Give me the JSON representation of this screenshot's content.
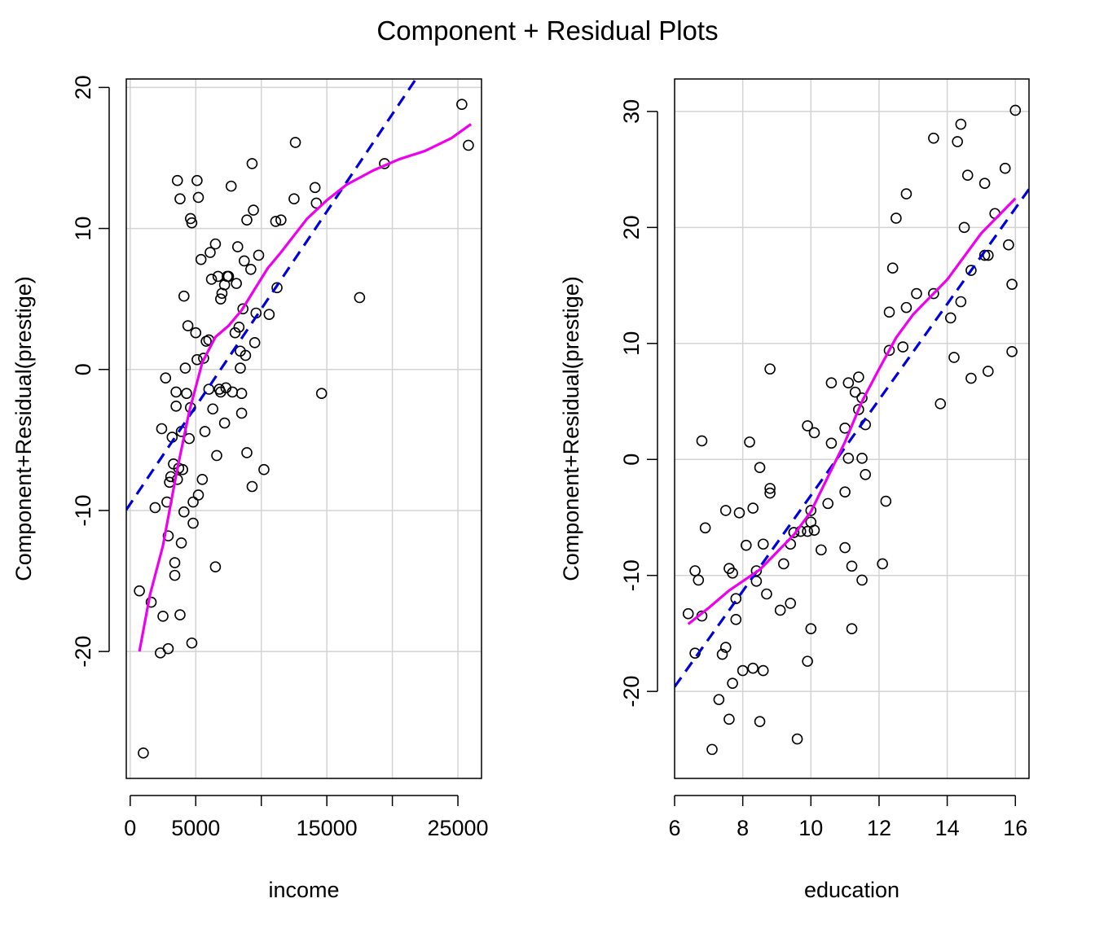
{
  "figure_title": "Component + Residual Plots",
  "chart_data": [
    {
      "type": "scatter",
      "title": "",
      "xlabel": "income",
      "ylabel": "Component+Residual(prestige)",
      "xlim": [
        -300,
        26800
      ],
      "ylim": [
        -29,
        20.6
      ],
      "xticks": [
        0,
        5000,
        15000,
        25000
      ],
      "xgrid": [
        0,
        5000,
        10000,
        15000,
        20000,
        25000
      ],
      "yticks": [
        -20,
        -10,
        0,
        10,
        20
      ],
      "grid": true,
      "colors": {
        "points": "#000000",
        "linear_fit": "#0000dd",
        "smooth": "#ee00ee",
        "grid": "#d3d3d3"
      },
      "points": [
        [
          700,
          -15.7
        ],
        [
          1000,
          -27.2
        ],
        [
          1600,
          -16.5
        ],
        [
          1900,
          -9.8
        ],
        [
          2300,
          -20.1
        ],
        [
          2400,
          -4.2
        ],
        [
          2500,
          -17.5
        ],
        [
          2700,
          -0.6
        ],
        [
          2800,
          -9.4
        ],
        [
          2900,
          -11.8
        ],
        [
          2900,
          -19.8
        ],
        [
          3000,
          -8
        ],
        [
          3100,
          -7.6
        ],
        [
          3200,
          -4.8
        ],
        [
          3300,
          -6.7
        ],
        [
          3400,
          -14.6
        ],
        [
          3400,
          -13.7
        ],
        [
          3500,
          -1.6
        ],
        [
          3500,
          -2.6
        ],
        [
          3600,
          13.4
        ],
        [
          3600,
          -7.8
        ],
        [
          3700,
          -7
        ],
        [
          3800,
          12.1
        ],
        [
          3800,
          -17.4
        ],
        [
          3900,
          -12.3
        ],
        [
          3900,
          -4.4
        ],
        [
          4000,
          -7.1
        ],
        [
          4100,
          5.2
        ],
        [
          4100,
          -10.1
        ],
        [
          4200,
          0.1
        ],
        [
          4300,
          -1.7
        ],
        [
          4400,
          3.1
        ],
        [
          4500,
          -4.9
        ],
        [
          4600,
          10.7
        ],
        [
          4600,
          -2.7
        ],
        [
          4700,
          10.4
        ],
        [
          4700,
          -19.4
        ],
        [
          4800,
          -9.4
        ],
        [
          4800,
          -10.9
        ],
        [
          5000,
          2.6
        ],
        [
          5100,
          13.4
        ],
        [
          5100,
          0.7
        ],
        [
          5200,
          12.2
        ],
        [
          5200,
          -8.9
        ],
        [
          5400,
          7.8
        ],
        [
          5500,
          -7.8
        ],
        [
          5600,
          0.8
        ],
        [
          5700,
          -4.4
        ],
        [
          5800,
          2
        ],
        [
          6000,
          2.1
        ],
        [
          6000,
          -1.4
        ],
        [
          6100,
          8.3
        ],
        [
          6200,
          6.4
        ],
        [
          6300,
          -2.8
        ],
        [
          6500,
          8.9
        ],
        [
          6500,
          -14
        ],
        [
          6600,
          -6.1
        ],
        [
          6700,
          6.6
        ],
        [
          6800,
          -1.4
        ],
        [
          6900,
          5
        ],
        [
          6900,
          -1.6
        ],
        [
          7000,
          5.4
        ],
        [
          7200,
          6
        ],
        [
          7200,
          -3.8
        ],
        [
          7300,
          -1.3
        ],
        [
          7400,
          6.6
        ],
        [
          7500,
          6.6
        ],
        [
          7700,
          13
        ],
        [
          7800,
          -1.6
        ],
        [
          8000,
          2.6
        ],
        [
          8100,
          6.1
        ],
        [
          8200,
          8.7
        ],
        [
          8300,
          3
        ],
        [
          8400,
          1.3
        ],
        [
          8400,
          0.1
        ],
        [
          8500,
          -1.7
        ],
        [
          8500,
          -3.1
        ],
        [
          8600,
          4.3
        ],
        [
          8700,
          7.7
        ],
        [
          8800,
          1
        ],
        [
          8900,
          10.6
        ],
        [
          8900,
          -5.9
        ],
        [
          9200,
          7.1
        ],
        [
          9300,
          14.6
        ],
        [
          9300,
          -8.3
        ],
        [
          9400,
          11.3
        ],
        [
          9500,
          1.9
        ],
        [
          9600,
          4
        ],
        [
          9800,
          8.1
        ],
        [
          10200,
          -7.1
        ],
        [
          10600,
          3.9
        ],
        [
          11100,
          10.5
        ],
        [
          11200,
          5.8
        ],
        [
          11500,
          10.6
        ],
        [
          12500,
          12.1
        ],
        [
          12600,
          16.1
        ],
        [
          14100,
          12.9
        ],
        [
          14200,
          11.8
        ],
        [
          14600,
          -1.7
        ],
        [
          17500,
          5.1
        ],
        [
          19400,
          14.6
        ],
        [
          25300,
          18.8
        ],
        [
          25800,
          15.9
        ]
      ],
      "linear_fit": {
        "x": [
          -300,
          21800
        ],
        "y": [
          -9.95,
          20.6
        ]
      },
      "smooth": {
        "x": [
          700,
          1500,
          2500,
          3500,
          4500,
          5500,
          6500,
          7500,
          8500,
          9500,
          10500,
          11500,
          12500,
          13500,
          15000,
          16500,
          18500,
          20500,
          22500,
          24500,
          26000
        ],
        "y": [
          -20,
          -16,
          -12.5,
          -7.5,
          -3,
          0.5,
          2.3,
          3.1,
          4.2,
          5.7,
          7.2,
          8.3,
          9.5,
          10.7,
          12,
          13.1,
          14.1,
          14.9,
          15.5,
          16.4,
          17.4
        ]
      }
    },
    {
      "type": "scatter",
      "title": "",
      "xlabel": "education",
      "ylabel": "Component+Residual(prestige)",
      "xlim": [
        6,
        16.4
      ],
      "ylim": [
        -27.5,
        32.8
      ],
      "xticks": [
        6,
        8,
        10,
        12,
        14,
        16
      ],
      "xgrid": [
        6,
        8,
        10,
        12,
        14,
        16
      ],
      "yticks": [
        -20,
        -10,
        0,
        10,
        20,
        30
      ],
      "grid": true,
      "colors": {
        "points": "#000000",
        "linear_fit": "#0000dd",
        "smooth": "#ee00ee",
        "grid": "#d3d3d3"
      },
      "points": [
        [
          6.4,
          -13.3
        ],
        [
          6.6,
          -9.6
        ],
        [
          6.6,
          -16.7
        ],
        [
          6.7,
          -10.4
        ],
        [
          6.8,
          -13.5
        ],
        [
          6.8,
          1.6
        ],
        [
          6.9,
          -5.9
        ],
        [
          7.1,
          -25
        ],
        [
          7.3,
          -20.7
        ],
        [
          7.4,
          -16.8
        ],
        [
          7.5,
          -16.2
        ],
        [
          7.5,
          -4.4
        ],
        [
          7.6,
          -22.4
        ],
        [
          7.6,
          -9.4
        ],
        [
          7.7,
          -9.8
        ],
        [
          7.7,
          -19.3
        ],
        [
          7.8,
          -12
        ],
        [
          7.8,
          -13.8
        ],
        [
          7.9,
          -4.6
        ],
        [
          8,
          -18.2
        ],
        [
          8.1,
          -7.4
        ],
        [
          8.2,
          1.5
        ],
        [
          8.3,
          -18
        ],
        [
          8.3,
          -4.2
        ],
        [
          8.4,
          -9.6
        ],
        [
          8.4,
          -10.5
        ],
        [
          8.5,
          -22.6
        ],
        [
          8.5,
          -0.7
        ],
        [
          8.6,
          -7.3
        ],
        [
          8.6,
          -18.2
        ],
        [
          8.7,
          -11.6
        ],
        [
          8.8,
          -2.5
        ],
        [
          8.8,
          -2.9
        ],
        [
          8.8,
          7.8
        ],
        [
          9.1,
          -13
        ],
        [
          9.2,
          -9
        ],
        [
          9.4,
          -7.3
        ],
        [
          9.4,
          -12.4
        ],
        [
          9.5,
          -6.3
        ],
        [
          9.5,
          -6.3
        ],
        [
          9.6,
          -24.1
        ],
        [
          9.7,
          -6.2
        ],
        [
          9.9,
          -6.2
        ],
        [
          9.9,
          -17.4
        ],
        [
          9.9,
          2.9
        ],
        [
          10,
          -5.4
        ],
        [
          10,
          -14.6
        ],
        [
          10,
          -4.4
        ],
        [
          10.1,
          -6.1
        ],
        [
          10.1,
          2.3
        ],
        [
          10.3,
          -7.8
        ],
        [
          10.5,
          -3.8
        ],
        [
          10.6,
          1.4
        ],
        [
          10.6,
          6.6
        ],
        [
          11,
          -2.8
        ],
        [
          11,
          2.7
        ],
        [
          11,
          -7.6
        ],
        [
          11.1,
          6.6
        ],
        [
          11.1,
          0.1
        ],
        [
          11.2,
          -9.2
        ],
        [
          11.2,
          -14.6
        ],
        [
          11.3,
          5.8
        ],
        [
          11.4,
          4.3
        ],
        [
          11.4,
          7.1
        ],
        [
          11.5,
          5.3
        ],
        [
          11.5,
          0.1
        ],
        [
          11.5,
          -10.4
        ],
        [
          11.6,
          3
        ],
        [
          11.6,
          -1.3
        ],
        [
          12.1,
          -9
        ],
        [
          12.2,
          -3.6
        ],
        [
          12.3,
          9.4
        ],
        [
          12.3,
          12.7
        ],
        [
          12.4,
          16.5
        ],
        [
          12.5,
          20.8
        ],
        [
          12.7,
          9.7
        ],
        [
          12.8,
          13.1
        ],
        [
          12.8,
          22.9
        ],
        [
          13.1,
          14.3
        ],
        [
          13.6,
          14.3
        ],
        [
          13.6,
          27.7
        ],
        [
          13.8,
          4.8
        ],
        [
          14.1,
          12.2
        ],
        [
          14.2,
          8.8
        ],
        [
          14.3,
          27.4
        ],
        [
          14.4,
          13.6
        ],
        [
          14.4,
          28.9
        ],
        [
          14.5,
          20
        ],
        [
          14.6,
          24.5
        ],
        [
          14.7,
          16.3
        ],
        [
          14.7,
          7
        ],
        [
          15.1,
          23.8
        ],
        [
          15.1,
          17.6
        ],
        [
          15.2,
          7.6
        ],
        [
          15.2,
          17.6
        ],
        [
          15.4,
          21.2
        ],
        [
          15.7,
          25.1
        ],
        [
          15.8,
          18.5
        ],
        [
          15.9,
          15.1
        ],
        [
          15.9,
          9.3
        ],
        [
          16,
          30.1
        ]
      ],
      "linear_fit": {
        "x": [
          6,
          16.4
        ],
        "y": [
          -19.6,
          23.3
        ]
      },
      "smooth": {
        "x": [
          6.4,
          7,
          7.6,
          8,
          8.5,
          9,
          9.5,
          10,
          10.5,
          11,
          11.5,
          12,
          12.5,
          13,
          14,
          15,
          16
        ],
        "y": [
          -14.2,
          -12.8,
          -11.3,
          -10.5,
          -9.5,
          -8,
          -6.5,
          -4.5,
          -1.5,
          1.5,
          5,
          7.8,
          10.5,
          12.5,
          15.5,
          19.5,
          22.5
        ]
      }
    }
  ]
}
